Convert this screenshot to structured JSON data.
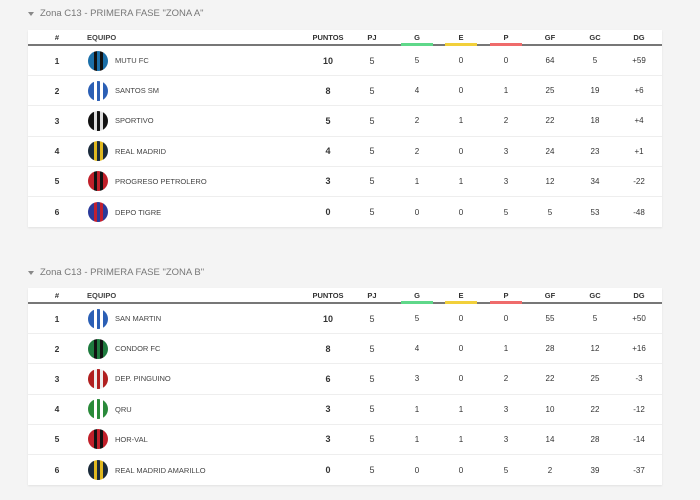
{
  "headers": {
    "pos": "#",
    "team": "EQUIPO",
    "pts": "PUNTOS",
    "pj": "PJ",
    "g": "G",
    "e": "E",
    "p": "P",
    "gf": "GF",
    "gc": "GC",
    "dg": "DG"
  },
  "header_colors": {
    "g": "#5fd88a",
    "e": "#f2d03b",
    "p": "#ef6b6b"
  },
  "groups": [
    {
      "title": "Zona C13 - PRIMERA FASE \"ZONA A\"",
      "rows": [
        {
          "pos": "1",
          "team": "MUTU FC",
          "pts": "10",
          "pj": "5",
          "g": "5",
          "e": "0",
          "p": "0",
          "gf": "64",
          "gc": "5",
          "dg": "+59",
          "logo": [
            "#1b6fa8",
            "#111"
          ]
        },
        {
          "pos": "2",
          "team": "SANTOS SM",
          "pts": "8",
          "pj": "5",
          "g": "4",
          "e": "0",
          "p": "1",
          "gf": "25",
          "gc": "19",
          "dg": "+6",
          "logo": [
            "#2b5fb5",
            "#fff"
          ]
        },
        {
          "pos": "3",
          "team": "SPORTIVO",
          "pts": "5",
          "pj": "5",
          "g": "2",
          "e": "1",
          "p": "2",
          "gf": "22",
          "gc": "18",
          "dg": "+4",
          "logo": [
            "#111",
            "#ddd"
          ]
        },
        {
          "pos": "4",
          "team": "REAL MADRID",
          "pts": "4",
          "pj": "5",
          "g": "2",
          "e": "0",
          "p": "3",
          "gf": "24",
          "gc": "23",
          "dg": "+1",
          "logo": [
            "#1a2a3a",
            "#e0b820"
          ]
        },
        {
          "pos": "5",
          "team": "PROGRESO PETROLERO",
          "pts": "3",
          "pj": "5",
          "g": "1",
          "e": "1",
          "p": "3",
          "gf": "12",
          "gc": "34",
          "dg": "-22",
          "logo": [
            "#c0202a",
            "#111"
          ]
        },
        {
          "pos": "6",
          "team": "DEPO TIGRE",
          "pts": "0",
          "pj": "5",
          "g": "0",
          "e": "0",
          "p": "5",
          "gf": "5",
          "gc": "53",
          "dg": "-48",
          "logo": [
            "#2a3a9a",
            "#c02030"
          ]
        }
      ]
    },
    {
      "title": "Zona C13 - PRIMERA FASE \"ZONA B\"",
      "rows": [
        {
          "pos": "1",
          "team": "SAN MARTIN",
          "pts": "10",
          "pj": "5",
          "g": "5",
          "e": "0",
          "p": "0",
          "gf": "55",
          "gc": "5",
          "dg": "+50",
          "logo": [
            "#2b5fb5",
            "#fff"
          ]
        },
        {
          "pos": "2",
          "team": "CONDOR FC",
          "pts": "8",
          "pj": "5",
          "g": "4",
          "e": "0",
          "p": "1",
          "gf": "28",
          "gc": "12",
          "dg": "+16",
          "logo": [
            "#1e7a3e",
            "#111"
          ]
        },
        {
          "pos": "3",
          "team": "DEP. PINGUINO",
          "pts": "6",
          "pj": "5",
          "g": "3",
          "e": "0",
          "p": "2",
          "gf": "22",
          "gc": "25",
          "dg": "-3",
          "logo": [
            "#b02020",
            "#eee"
          ]
        },
        {
          "pos": "4",
          "team": "QRU",
          "pts": "3",
          "pj": "5",
          "g": "1",
          "e": "1",
          "p": "3",
          "gf": "10",
          "gc": "22",
          "dg": "-12",
          "logo": [
            "#2a8a3a",
            "#fff"
          ]
        },
        {
          "pos": "5",
          "team": "HOR-VAL",
          "pts": "3",
          "pj": "5",
          "g": "1",
          "e": "1",
          "p": "3",
          "gf": "14",
          "gc": "28",
          "dg": "-14",
          "logo": [
            "#c0202a",
            "#111"
          ]
        },
        {
          "pos": "6",
          "team": "REAL MADRID AMARILLO",
          "pts": "0",
          "pj": "5",
          "g": "0",
          "e": "0",
          "p": "5",
          "gf": "2",
          "gc": "39",
          "dg": "-37",
          "logo": [
            "#1a2a3a",
            "#e0b820"
          ]
        }
      ]
    }
  ]
}
